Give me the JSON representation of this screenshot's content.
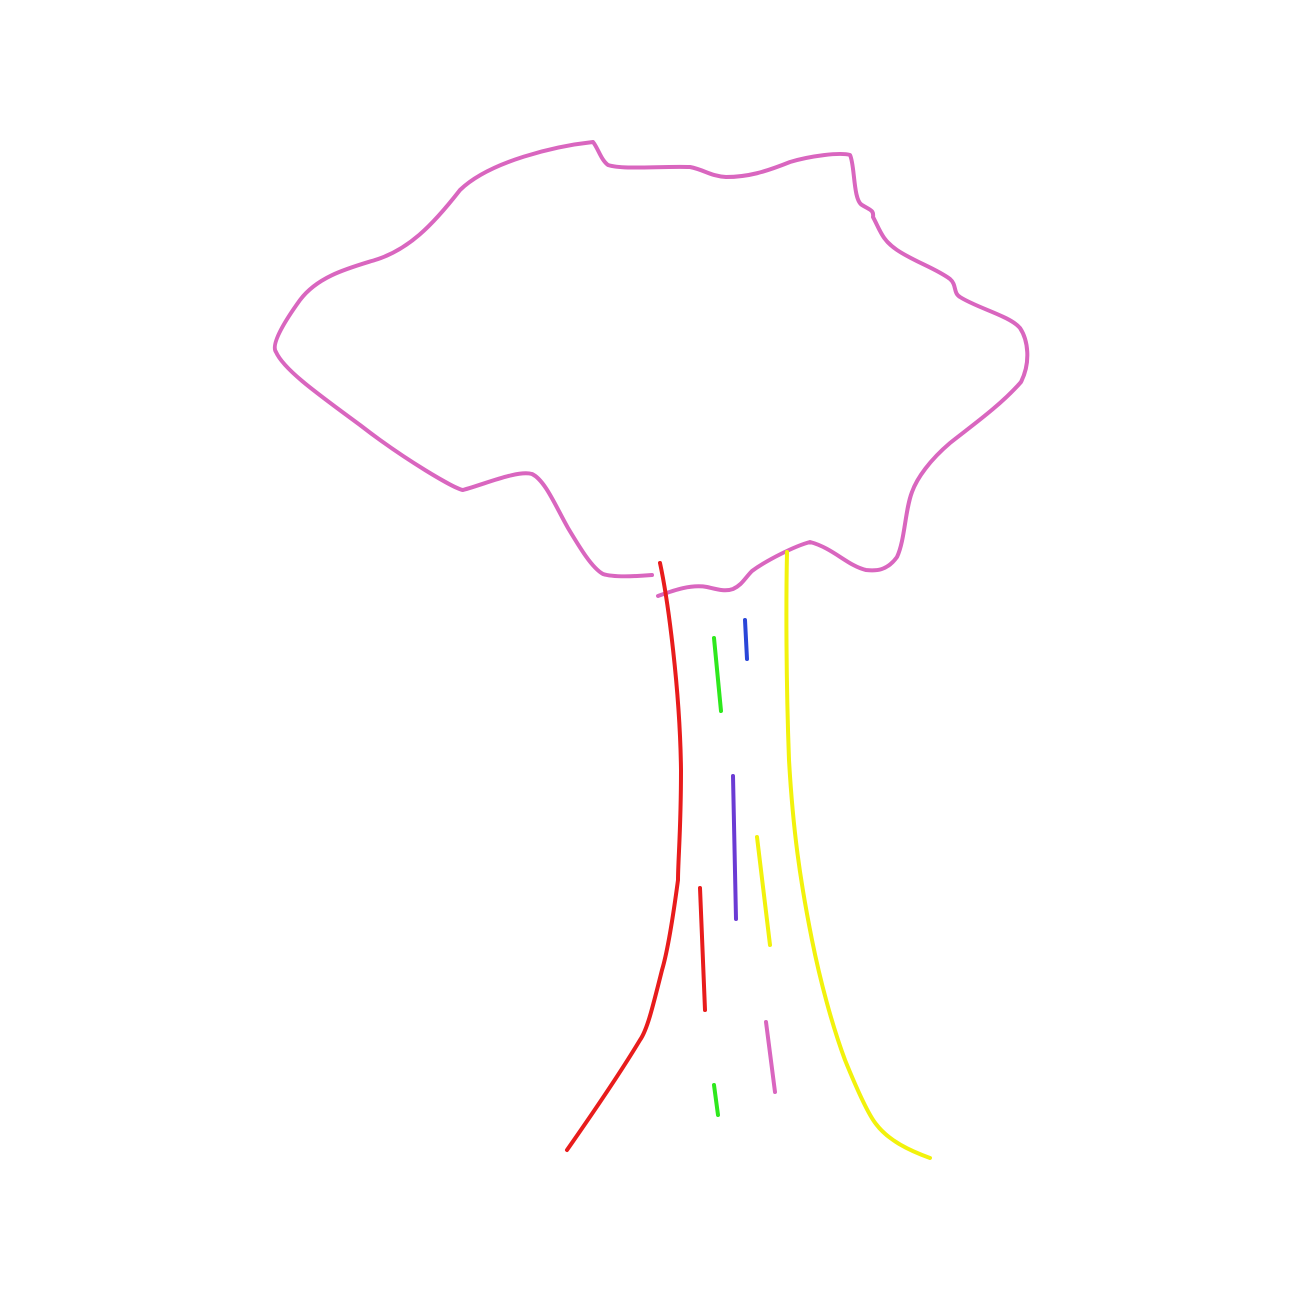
{
  "drawing": {
    "subject": "tree-doodle",
    "colors": {
      "background": "#ffffff",
      "canopy": "#d966bf",
      "trunk_left": "#e81c1c",
      "trunk_right": "#f2f20c",
      "mark_green": "#2ee81c",
      "mark_blue": "#2a46d8",
      "mark_purple": "#6b3bd4",
      "mark_yellow": "#f2f20c",
      "mark_red": "#e81c1c",
      "mark_pink": "#d966bf"
    }
  }
}
